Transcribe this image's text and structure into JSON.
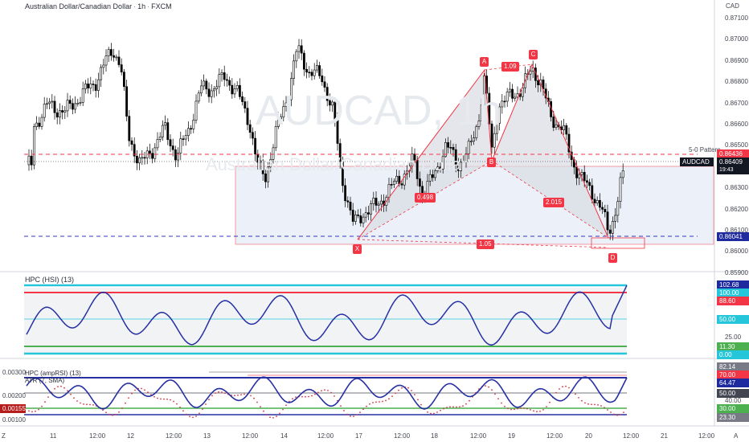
{
  "main": {
    "legend_symbol": "Australian Dollar/Canadian Dollar",
    "legend_interval": "1h",
    "legend_exchange": "FXCM",
    "currency": "CAD",
    "watermark_ticker": "AUDCAD, 1h",
    "watermark_name": "Australian Dollar/Canadian Dollar",
    "price_ticks": [
      "0.87100",
      "0.87000",
      "0.86900",
      "0.86800",
      "0.86700",
      "0.86600",
      "0.86500",
      "0.86400",
      "0.86300",
      "0.86200",
      "0.86100",
      "0.86000",
      "0.85900"
    ],
    "pattern_label": "5-0 Pattern",
    "labels": {
      "pattern_price": "0.86436",
      "symbol": "AUDCAD",
      "last_price": "0.86409",
      "countdown": "19:43",
      "x_level": "0.86041"
    },
    "points": {
      "X": "X",
      "A": "A",
      "B": "B",
      "C": "C",
      "D": "D"
    },
    "ratios": {
      "xa_ab": "0.498",
      "ab_bc": "1.09",
      "bc_cd": "2.015",
      "xd": "1.05"
    }
  },
  "hsi": {
    "legend": "HPC (HSI) (13)",
    "labels": [
      "102.68",
      "100.00",
      "88.60",
      "50.00",
      "25.00",
      "11.30",
      "0.00"
    ]
  },
  "amp": {
    "legend": "HPC (ampRSI) (13)",
    "atr_legend": "ATR (7, SMA)",
    "left_ticks": [
      "0.00300",
      "0.00200",
      "0.00100"
    ],
    "atr_value": "0.00155",
    "right_labels": [
      "82.14",
      "70.00",
      "64.47",
      "50.00",
      "40.00",
      "30.00",
      "23.30"
    ]
  },
  "time_axis": {
    "labels": [
      "11",
      "12:00",
      "12",
      "12:00",
      "13",
      "12:00",
      "14",
      "12:00",
      "17",
      "12:00",
      "18",
      "12:00",
      "19",
      "12:00",
      "20",
      "12:00",
      "21",
      "12:00"
    ]
  },
  "corner": {
    "left": "Z",
    "right": "A"
  },
  "colors": {
    "up_candle": "#ffffff",
    "down_candle": "#000000",
    "pattern": "#f23645",
    "zone": "#e3eaf6",
    "blue_level": "#2f3bbd",
    "hsi_line": "#2630a3",
    "cyan_band": "#26c6da",
    "green_band": "#4caf50",
    "red_band": "#f23645"
  }
}
